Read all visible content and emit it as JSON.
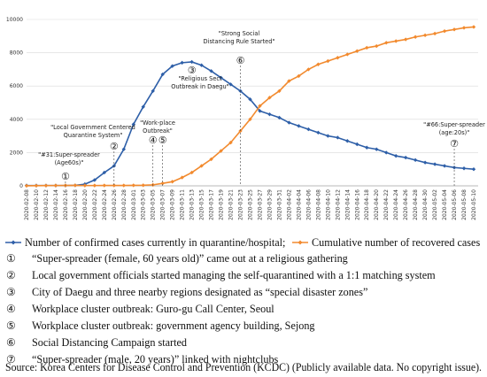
{
  "chart_data": {
    "type": "line",
    "categories": [
      "2020-02-08",
      "2020-02-10",
      "2020-02-12",
      "2020-02-14",
      "2020-02-16",
      "2020-02-18",
      "2020-02-20",
      "2020-02-22",
      "2020-02-24",
      "2020-02-26",
      "2020-02-28",
      "2020-03-01",
      "2020-03-03",
      "2020-03-05",
      "2020-03-07",
      "2020-03-09",
      "2020-03-11",
      "2020-03-13",
      "2020-03-15",
      "2020-03-17",
      "2020-03-19",
      "2020-03-21",
      "2020-03-23",
      "2020-03-25",
      "2020-03-27",
      "2020-03-29",
      "2020-03-31",
      "2020-04-02",
      "2020-04-04",
      "2020-04-06",
      "2020-04-08",
      "2020-04-10",
      "2020-04-12",
      "2020-04-14",
      "2020-04-16",
      "2020-04-18",
      "2020-04-20",
      "2020-04-22",
      "2020-04-24",
      "2020-04-26",
      "2020-04-28",
      "2020-04-30",
      "2020-05-02",
      "2020-05-04",
      "2020-05-06",
      "2020-05-08",
      "2020-05-10"
    ],
    "series": [
      {
        "name": "Number of confirmed cases currently in quarantine/hospital;",
        "color": "#2e5fa8",
        "values": [
          20,
          20,
          20,
          20,
          20,
          30,
          100,
          350,
          800,
          1200,
          2200,
          3700,
          4750,
          5700,
          6700,
          7200,
          7400,
          7450,
          7250,
          6900,
          6500,
          6100,
          5700,
          5200,
          4500,
          4300,
          4100,
          3800,
          3600,
          3400,
          3200,
          3000,
          2900,
          2700,
          2500,
          2300,
          2200,
          2000,
          1800,
          1700,
          1550,
          1400,
          1300,
          1200,
          1100,
          1050,
          1000
        ]
      },
      {
        "name": "Cumulative number of recovered cases",
        "color": "#f28a2e",
        "values": [
          5,
          10,
          15,
          20,
          25,
          30,
          20,
          20,
          25,
          25,
          25,
          30,
          35,
          60,
          150,
          250,
          500,
          800,
          1200,
          1600,
          2100,
          2600,
          3300,
          4000,
          4800,
          5300,
          5700,
          6300,
          6600,
          7000,
          7300,
          7500,
          7700,
          7900,
          8100,
          8300,
          8400,
          8600,
          8700,
          8800,
          8950,
          9050,
          9150,
          9300,
          9400,
          9500,
          9550
        ]
      }
    ],
    "ylim": [
      0,
      10000
    ],
    "yticks": [
      0,
      2000,
      4000,
      6000,
      8000,
      10000
    ],
    "grid": true,
    "events": [
      {
        "x": "2020-02-16",
        "marker": "①"
      },
      {
        "x": "2020-02-26",
        "marker": "②"
      },
      {
        "x": "2020-03-13",
        "marker": "③"
      },
      {
        "x": "2020-03-05",
        "marker": "④"
      },
      {
        "x": "2020-03-07",
        "marker": "⑤"
      },
      {
        "x": "2020-03-23",
        "marker": "⑥"
      },
      {
        "x": "2020-05-06",
        "marker": "⑦"
      }
    ],
    "annotations": [
      {
        "lines": [
          "\"#31:Super-spreader",
          "(Age60s)\""
        ]
      },
      {
        "lines": [
          "\"Local Government Centered",
          "Quarantine System\""
        ]
      },
      {
        "lines": [
          "\"Religious Sect",
          "Outbreak in Daegu\""
        ]
      },
      {
        "lines": [
          "\"Work-place",
          "Outbreak\""
        ]
      },
      {
        "lines": [
          "\"Strong Social",
          "Distancing Rule Started\""
        ]
      },
      {
        "lines": [
          "\"#66:Super-spreader",
          "(age:20s)\""
        ]
      }
    ]
  },
  "notes": [
    {
      "marker": "①",
      "text": "“Super-spreader (female, 60 years old)” came out at a religious gathering"
    },
    {
      "marker": "②",
      "text": "Local government officials started managing the self-quarantined with a 1:1 matching system"
    },
    {
      "marker": "③",
      "text": "City of Daegu and three nearby regions designated as “special disaster zones”"
    },
    {
      "marker": "④",
      "text": "Workplace cluster outbreak: Guro-gu Call Center, Seoul"
    },
    {
      "marker": "⑤",
      "text": "Workplace cluster outbreak: government agency building, Sejong"
    },
    {
      "marker": "⑥",
      "text": "Social Distancing Campaign started"
    },
    {
      "marker": "⑦",
      "text": "“Super-spreader (male, 20 years)” linked with nightclubs"
    }
  ],
  "source": "Source: Korea Centers for Disease Control and Prevention (KCDC) (Publicly available data. No copyright issue)."
}
